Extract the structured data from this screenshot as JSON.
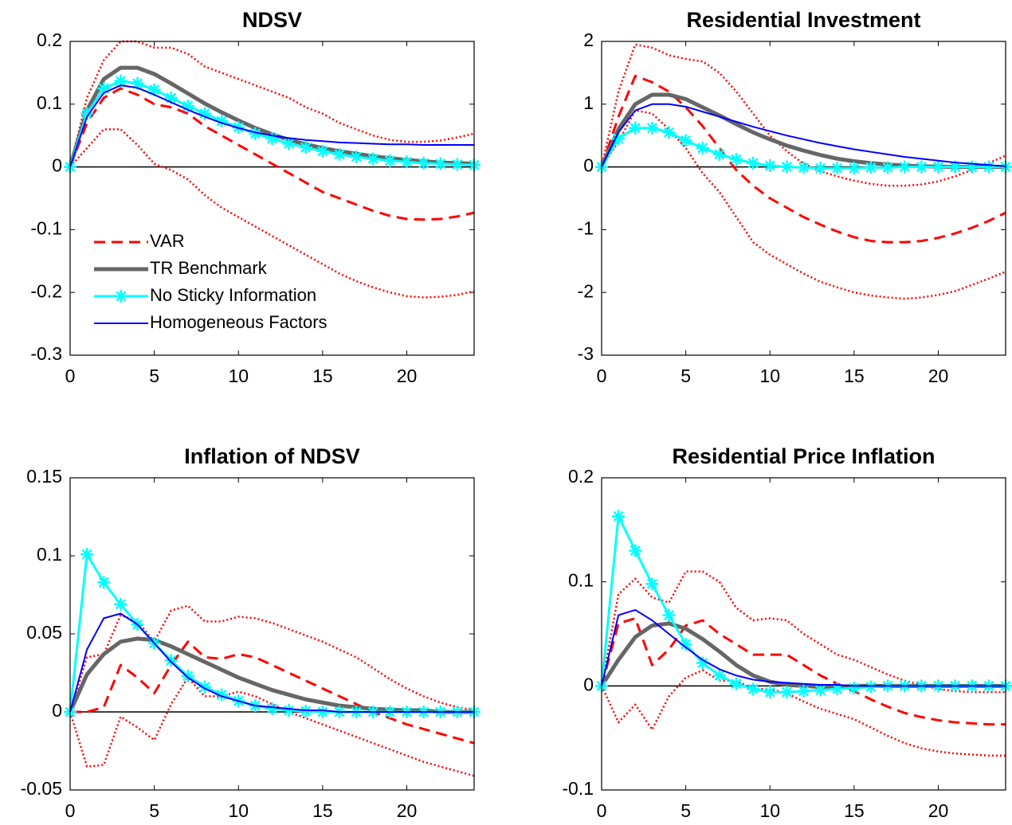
{
  "chart_data": [
    {
      "type": "line",
      "title": "NDSV",
      "legend": "lower left",
      "x": [
        0,
        1,
        2,
        3,
        4,
        5,
        6,
        7,
        8,
        9,
        10,
        11,
        12,
        13,
        14,
        15,
        16,
        17,
        18,
        19,
        20,
        21,
        22,
        23,
        24
      ],
      "xlim": [
        0,
        24
      ],
      "xticks": [
        0,
        5,
        10,
        15,
        20
      ],
      "ylim": [
        -0.3,
        0.2
      ],
      "yticks": [
        -0.3,
        -0.2,
        -0.1,
        0,
        0.1,
        0.2
      ],
      "series": [
        {
          "name": "VAR",
          "color": "#ff0000",
          "style": "dashed",
          "values": [
            0,
            0.07,
            0.11,
            0.125,
            0.115,
            0.1,
            0.095,
            0.085,
            0.065,
            0.05,
            0.035,
            0.02,
            0.005,
            -0.01,
            -0.025,
            -0.04,
            -0.05,
            -0.06,
            -0.07,
            -0.078,
            -0.083,
            -0.084,
            -0.083,
            -0.079,
            -0.073
          ]
        },
        {
          "color": "#ff0000",
          "style": "dotted",
          "values": [
            0,
            0.11,
            0.17,
            0.2,
            0.2,
            0.19,
            0.19,
            0.18,
            0.16,
            0.15,
            0.14,
            0.13,
            0.12,
            0.11,
            0.095,
            0.085,
            0.07,
            0.06,
            0.05,
            0.043,
            0.04,
            0.04,
            0.042,
            0.047,
            0.053
          ]
        },
        {
          "color": "#ff0000",
          "style": "dotted",
          "values": [
            0,
            0.03,
            0.06,
            0.06,
            0.035,
            0.005,
            -0.005,
            -0.02,
            -0.045,
            -0.065,
            -0.08,
            -0.095,
            -0.11,
            -0.125,
            -0.14,
            -0.155,
            -0.17,
            -0.182,
            -0.192,
            -0.2,
            -0.206,
            -0.208,
            -0.207,
            -0.204,
            -0.198
          ]
        },
        {
          "name": "TR Benchmark",
          "color": "#666666",
          "style": "thick",
          "values": [
            0,
            0.09,
            0.14,
            0.158,
            0.158,
            0.148,
            0.133,
            0.117,
            0.101,
            0.087,
            0.074,
            0.062,
            0.052,
            0.043,
            0.036,
            0.03,
            0.025,
            0.021,
            0.017,
            0.014,
            0.011,
            0.009,
            0.007,
            0.006,
            0.005
          ]
        },
        {
          "name": "No Sticky Information",
          "color": "#00ffff",
          "style": "asterisk",
          "values": [
            0,
            0.085,
            0.125,
            0.137,
            0.133,
            0.123,
            0.11,
            0.097,
            0.085,
            0.073,
            0.063,
            0.053,
            0.045,
            0.037,
            0.031,
            0.025,
            0.02,
            0.016,
            0.013,
            0.01,
            0.008,
            0.006,
            0.005,
            0.004,
            0.003
          ]
        },
        {
          "name": "Homogeneous Factors",
          "color": "#0000ff",
          "style": "solid",
          "values": [
            0,
            0.08,
            0.118,
            0.13,
            0.126,
            0.115,
            0.103,
            0.091,
            0.08,
            0.07,
            0.062,
            0.055,
            0.05,
            0.046,
            0.043,
            0.041,
            0.039,
            0.038,
            0.037,
            0.036,
            0.036,
            0.035,
            0.035,
            0.035,
            0.035
          ]
        }
      ]
    },
    {
      "type": "line",
      "title": "Residential Investment",
      "x": [
        0,
        1,
        2,
        3,
        4,
        5,
        6,
        7,
        8,
        9,
        10,
        11,
        12,
        13,
        14,
        15,
        16,
        17,
        18,
        19,
        20,
        21,
        22,
        23,
        24
      ],
      "xlim": [
        0,
        24
      ],
      "xticks": [
        0,
        5,
        10,
        15,
        20
      ],
      "ylim": [
        -3,
        2
      ],
      "yticks": [
        -3,
        -2,
        -1,
        0,
        1,
        2
      ],
      "series": [
        {
          "color": "#ff0000",
          "style": "dashed",
          "values": [
            0,
            0.8,
            1.45,
            1.35,
            1.2,
            0.95,
            0.65,
            0.3,
            -0.05,
            -0.3,
            -0.5,
            -0.65,
            -0.8,
            -0.92,
            -1.03,
            -1.12,
            -1.18,
            -1.2,
            -1.2,
            -1.18,
            -1.13,
            -1.06,
            -0.97,
            -0.86,
            -0.73
          ]
        },
        {
          "color": "#ff0000",
          "style": "dotted",
          "values": [
            0,
            1.2,
            1.95,
            1.9,
            1.78,
            1.72,
            1.68,
            1.5,
            1.2,
            0.85,
            0.5,
            0.25,
            0.05,
            -0.07,
            -0.15,
            -0.22,
            -0.27,
            -0.3,
            -0.3,
            -0.28,
            -0.23,
            -0.15,
            -0.05,
            0.06,
            0.18
          ]
        },
        {
          "color": "#ff0000",
          "style": "dotted",
          "values": [
            0,
            0.4,
            0.9,
            0.85,
            0.6,
            0.3,
            -0.1,
            -0.4,
            -0.8,
            -1.2,
            -1.4,
            -1.55,
            -1.7,
            -1.83,
            -1.92,
            -2.0,
            -2.05,
            -2.08,
            -2.1,
            -2.08,
            -2.04,
            -1.98,
            -1.88,
            -1.78,
            -1.67
          ]
        },
        {
          "color": "#666666",
          "style": "thick",
          "values": [
            0,
            0.6,
            1.0,
            1.15,
            1.15,
            1.08,
            0.95,
            0.82,
            0.68,
            0.55,
            0.44,
            0.34,
            0.26,
            0.19,
            0.13,
            0.09,
            0.06,
            0.04,
            0.02,
            0.01,
            0.005,
            0,
            0,
            0,
            0
          ]
        },
        {
          "color": "#00ffff",
          "style": "asterisk",
          "values": [
            0,
            0.45,
            0.62,
            0.62,
            0.55,
            0.42,
            0.3,
            0.2,
            0.12,
            0.06,
            0.02,
            0,
            -0.01,
            -0.02,
            -0.02,
            -0.02,
            -0.01,
            -0.01,
            0,
            0,
            0,
            0,
            0,
            0,
            0
          ]
        },
        {
          "color": "#0000ff",
          "style": "solid",
          "values": [
            0,
            0.55,
            0.9,
            1.0,
            1.0,
            0.96,
            0.88,
            0.8,
            0.72,
            0.64,
            0.57,
            0.5,
            0.44,
            0.38,
            0.33,
            0.28,
            0.24,
            0.2,
            0.16,
            0.13,
            0.1,
            0.07,
            0.05,
            0.03,
            0.01
          ]
        }
      ]
    },
    {
      "type": "line",
      "title": "Inflation of NDSV",
      "x": [
        0,
        1,
        2,
        3,
        4,
        5,
        6,
        7,
        8,
        9,
        10,
        11,
        12,
        13,
        14,
        15,
        16,
        17,
        18,
        19,
        20,
        21,
        22,
        23,
        24
      ],
      "xlim": [
        0,
        24
      ],
      "xticks": [
        0,
        5,
        10,
        15,
        20
      ],
      "ylim": [
        -0.05,
        0.15
      ],
      "yticks": [
        -0.05,
        0,
        0.05,
        0.1,
        0.15
      ],
      "series": [
        {
          "color": "#ff0000",
          "style": "dashed",
          "values": [
            0,
            0,
            0.003,
            0.03,
            0.022,
            0.012,
            0.03,
            0.045,
            0.035,
            0.034,
            0.037,
            0.035,
            0.03,
            0.025,
            0.02,
            0.015,
            0.01,
            0.005,
            0,
            -0.004,
            -0.008,
            -0.011,
            -0.014,
            -0.017,
            -0.02
          ]
        },
        {
          "color": "#ff0000",
          "style": "dotted",
          "values": [
            0,
            0.035,
            0.037,
            0.062,
            0.058,
            0.045,
            0.065,
            0.068,
            0.058,
            0.058,
            0.061,
            0.06,
            0.057,
            0.053,
            0.049,
            0.045,
            0.04,
            0.035,
            0.028,
            0.021,
            0.015,
            0.01,
            0.006,
            0.003,
            0.001
          ]
        },
        {
          "color": "#ff0000",
          "style": "dotted",
          "values": [
            0,
            -0.035,
            -0.034,
            -0.003,
            -0.01,
            -0.018,
            0.005,
            0.022,
            0.01,
            0.01,
            0.013,
            0.01,
            0.005,
            0,
            -0.004,
            -0.008,
            -0.012,
            -0.016,
            -0.02,
            -0.024,
            -0.028,
            -0.032,
            -0.035,
            -0.038,
            -0.041
          ]
        },
        {
          "color": "#666666",
          "style": "thick",
          "values": [
            0,
            0.024,
            0.037,
            0.045,
            0.047,
            0.046,
            0.042,
            0.037,
            0.032,
            0.027,
            0.022,
            0.018,
            0.014,
            0.011,
            0.008,
            0.006,
            0.004,
            0.003,
            0.002,
            0.0015,
            0.001,
            0.001,
            0,
            0,
            0
          ]
        },
        {
          "color": "#00ffff",
          "style": "asterisk",
          "values": [
            0,
            0.101,
            0.083,
            0.069,
            0.056,
            0.044,
            0.033,
            0.023,
            0.016,
            0.011,
            0.007,
            0.004,
            0.002,
            0.001,
            0.0005,
            0,
            0,
            0,
            0,
            0,
            0,
            0,
            0,
            0,
            0
          ]
        },
        {
          "color": "#0000ff",
          "style": "solid",
          "values": [
            0,
            0.04,
            0.06,
            0.063,
            0.056,
            0.044,
            0.032,
            0.022,
            0.015,
            0.01,
            0.007,
            0.004,
            0.003,
            0.002,
            0.001,
            0.001,
            0,
            0,
            0,
            0,
            0,
            0,
            0,
            0,
            0
          ]
        }
      ]
    },
    {
      "type": "line",
      "title": "Residential Price Inflation",
      "x": [
        0,
        1,
        2,
        3,
        4,
        5,
        6,
        7,
        8,
        9,
        10,
        11,
        12,
        13,
        14,
        15,
        16,
        17,
        18,
        19,
        20,
        21,
        22,
        23,
        24
      ],
      "xlim": [
        0,
        24
      ],
      "xticks": [
        0,
        5,
        10,
        15,
        20
      ],
      "ylim": [
        -0.1,
        0.2
      ],
      "yticks": [
        -0.1,
        0,
        0.1,
        0.2
      ],
      "series": [
        {
          "color": "#ff0000",
          "style": "dashed",
          "values": [
            0,
            0.06,
            0.065,
            0.02,
            0.035,
            0.058,
            0.063,
            0.05,
            0.04,
            0.03,
            0.03,
            0.03,
            0.02,
            0.01,
            0.002,
            -0.005,
            -0.013,
            -0.02,
            -0.026,
            -0.03,
            -0.033,
            -0.035,
            -0.036,
            -0.037,
            -0.037
          ]
        },
        {
          "color": "#ff0000",
          "style": "dotted",
          "values": [
            0,
            0.088,
            0.103,
            0.085,
            0.08,
            0.11,
            0.11,
            0.1,
            0.075,
            0.063,
            0.065,
            0.063,
            0.05,
            0.04,
            0.03,
            0.025,
            0.018,
            0.011,
            0.005,
            0.001,
            -0.003,
            -0.005,
            -0.006,
            -0.006,
            -0.006
          ]
        },
        {
          "color": "#ff0000",
          "style": "dotted",
          "values": [
            0,
            -0.035,
            -0.018,
            -0.042,
            -0.01,
            0.008,
            0.015,
            0.005,
            0.005,
            -0.003,
            -0.003,
            -0.007,
            -0.015,
            -0.022,
            -0.027,
            -0.032,
            -0.04,
            -0.048,
            -0.055,
            -0.06,
            -0.063,
            -0.065,
            -0.066,
            -0.067,
            -0.067
          ]
        },
        {
          "color": "#666666",
          "style": "thick",
          "values": [
            0,
            0.025,
            0.047,
            0.058,
            0.06,
            0.055,
            0.045,
            0.033,
            0.02,
            0.01,
            0.004,
            0.001,
            0,
            -0.001,
            -0.001,
            0,
            0,
            0,
            0,
            0,
            0,
            0,
            0,
            0,
            0
          ]
        },
        {
          "color": "#00ffff",
          "style": "asterisk",
          "values": [
            0,
            0.163,
            0.13,
            0.098,
            0.068,
            0.04,
            0.022,
            0.01,
            0.002,
            -0.003,
            -0.006,
            -0.006,
            -0.005,
            -0.004,
            -0.003,
            -0.002,
            -0.001,
            0,
            0,
            0,
            0,
            0,
            0,
            0,
            0
          ]
        },
        {
          "color": "#0000ff",
          "style": "solid",
          "values": [
            0,
            0.068,
            0.073,
            0.063,
            0.05,
            0.037,
            0.025,
            0.016,
            0.01,
            0.006,
            0.004,
            0.003,
            0.002,
            0.001,
            0.001,
            0,
            0,
            0,
            0,
            0,
            0,
            0,
            0,
            0,
            0
          ]
        }
      ]
    }
  ]
}
